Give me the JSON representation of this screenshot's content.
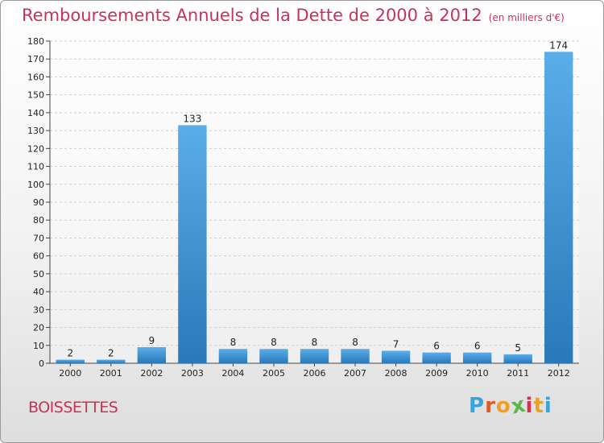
{
  "chart_data": {
    "type": "bar",
    "title": "Remboursements Annuels de la Dette de 2000 à 2012",
    "subtitle": "(en milliers d'€)",
    "categories": [
      "2000",
      "2001",
      "2002",
      "2003",
      "2004",
      "2005",
      "2006",
      "2007",
      "2008",
      "2009",
      "2010",
      "2011",
      "2012"
    ],
    "values": [
      2,
      2,
      9,
      133,
      8,
      8,
      8,
      8,
      7,
      6,
      6,
      5,
      174
    ],
    "ylim": [
      0,
      180
    ],
    "yticks": [
      0,
      10,
      20,
      30,
      40,
      50,
      60,
      70,
      80,
      90,
      100,
      110,
      120,
      130,
      140,
      150,
      160,
      170,
      180
    ],
    "grid": true,
    "bar_color": "#3a8fd4"
  },
  "footer": {
    "place": "BOISSETTES",
    "logo_letters": [
      "P",
      "r",
      "o",
      "x",
      "i",
      "t",
      "i"
    ],
    "logo_colors": [
      "#3aa3d8",
      "#e05a2a",
      "#f0a020",
      "#5ab84a",
      "#d8324a",
      "#f0a020",
      "#3aa3d8"
    ]
  }
}
